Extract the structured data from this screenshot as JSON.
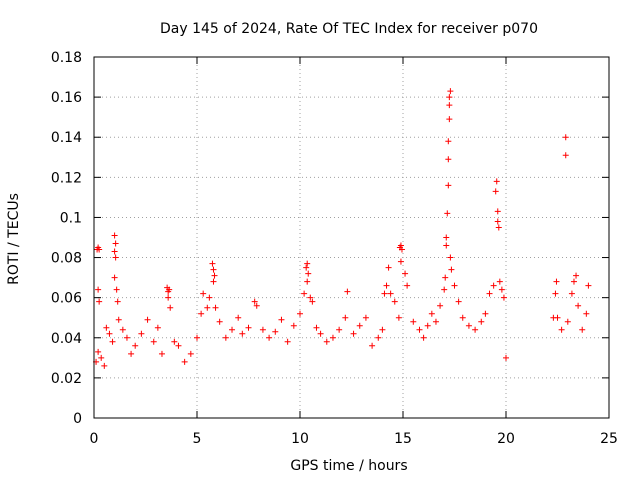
{
  "chart_data": {
    "type": "scatter",
    "title": "Day 145 of 2024, Rate Of TEC Index for receiver p070",
    "xlabel": "GPS time / hours",
    "ylabel": "ROTI / TECUs",
    "xlim": [
      0,
      25
    ],
    "ylim": [
      0,
      0.18
    ],
    "xticks": [
      0,
      5,
      10,
      15,
      20,
      25
    ],
    "xtick_labels": [
      "0",
      "5",
      "10",
      "15",
      "20",
      "25"
    ],
    "yticks": [
      0,
      0.02,
      0.04,
      0.06,
      0.08,
      0.1,
      0.12,
      0.14,
      0.16,
      0.18
    ],
    "ytick_labels": [
      "0",
      "0.02",
      "0.04",
      "0.06",
      "0.08",
      "0.1",
      "0.12",
      "0.14",
      "0.16",
      "0.18"
    ],
    "grid": true,
    "marker": "+",
    "color": "#ff0000",
    "series": [
      {
        "name": "p070",
        "points": [
          [
            0.15,
            0.084
          ],
          [
            0.2,
            0.085
          ],
          [
            0.25,
            0.084
          ],
          [
            0.2,
            0.064
          ],
          [
            0.25,
            0.058
          ],
          [
            0.1,
            0.028
          ],
          [
            0.2,
            0.033
          ],
          [
            0.35,
            0.03
          ],
          [
            0.5,
            0.026
          ],
          [
            0.6,
            0.045
          ],
          [
            0.75,
            0.042
          ],
          [
            0.9,
            0.038
          ],
          [
            1.0,
            0.091
          ],
          [
            1.05,
            0.087
          ],
          [
            1.0,
            0.083
          ],
          [
            1.05,
            0.08
          ],
          [
            1.0,
            0.07
          ],
          [
            1.1,
            0.064
          ],
          [
            1.15,
            0.058
          ],
          [
            1.2,
            0.049
          ],
          [
            1.4,
            0.044
          ],
          [
            1.6,
            0.04
          ],
          [
            1.8,
            0.032
          ],
          [
            2.0,
            0.036
          ],
          [
            2.3,
            0.042
          ],
          [
            2.6,
            0.049
          ],
          [
            2.9,
            0.038
          ],
          [
            3.1,
            0.045
          ],
          [
            3.3,
            0.032
          ],
          [
            3.55,
            0.065
          ],
          [
            3.6,
            0.063
          ],
          [
            3.65,
            0.064
          ],
          [
            3.6,
            0.06
          ],
          [
            3.7,
            0.055
          ],
          [
            3.9,
            0.038
          ],
          [
            4.1,
            0.036
          ],
          [
            4.4,
            0.028
          ],
          [
            4.7,
            0.032
          ],
          [
            5.0,
            0.04
          ],
          [
            5.2,
            0.052
          ],
          [
            5.3,
            0.062
          ],
          [
            5.5,
            0.055
          ],
          [
            5.6,
            0.06
          ],
          [
            5.75,
            0.077
          ],
          [
            5.8,
            0.074
          ],
          [
            5.85,
            0.071
          ],
          [
            5.8,
            0.068
          ],
          [
            5.9,
            0.055
          ],
          [
            6.1,
            0.048
          ],
          [
            6.4,
            0.04
          ],
          [
            6.7,
            0.044
          ],
          [
            7.0,
            0.05
          ],
          [
            7.2,
            0.042
          ],
          [
            7.5,
            0.045
          ],
          [
            7.8,
            0.058
          ],
          [
            7.9,
            0.056
          ],
          [
            8.2,
            0.044
          ],
          [
            8.5,
            0.04
          ],
          [
            8.8,
            0.043
          ],
          [
            9.1,
            0.049
          ],
          [
            9.4,
            0.038
          ],
          [
            9.7,
            0.046
          ],
          [
            10.0,
            0.052
          ],
          [
            10.2,
            0.062
          ],
          [
            10.3,
            0.075
          ],
          [
            10.35,
            0.077
          ],
          [
            10.4,
            0.072
          ],
          [
            10.35,
            0.068
          ],
          [
            10.5,
            0.06
          ],
          [
            10.6,
            0.058
          ],
          [
            10.8,
            0.045
          ],
          [
            11.0,
            0.042
          ],
          [
            11.3,
            0.038
          ],
          [
            11.6,
            0.04
          ],
          [
            11.9,
            0.044
          ],
          [
            12.2,
            0.05
          ],
          [
            12.3,
            0.063
          ],
          [
            12.6,
            0.042
          ],
          [
            12.9,
            0.046
          ],
          [
            13.2,
            0.05
          ],
          [
            13.5,
            0.036
          ],
          [
            13.8,
            0.04
          ],
          [
            14.0,
            0.044
          ],
          [
            14.1,
            0.062
          ],
          [
            14.2,
            0.066
          ],
          [
            14.3,
            0.075
          ],
          [
            14.4,
            0.062
          ],
          [
            14.6,
            0.058
          ],
          [
            14.8,
            0.05
          ],
          [
            14.85,
            0.085
          ],
          [
            14.9,
            0.086
          ],
          [
            14.95,
            0.084
          ],
          [
            14.9,
            0.078
          ],
          [
            15.1,
            0.072
          ],
          [
            15.2,
            0.066
          ],
          [
            15.5,
            0.048
          ],
          [
            15.8,
            0.044
          ],
          [
            16.0,
            0.04
          ],
          [
            16.2,
            0.046
          ],
          [
            16.4,
            0.052
          ],
          [
            16.6,
            0.048
          ],
          [
            16.8,
            0.056
          ],
          [
            17.0,
            0.064
          ],
          [
            17.05,
            0.07
          ],
          [
            17.1,
            0.086
          ],
          [
            17.1,
            0.09
          ],
          [
            17.15,
            0.102
          ],
          [
            17.2,
            0.116
          ],
          [
            17.2,
            0.129
          ],
          [
            17.2,
            0.138
          ],
          [
            17.25,
            0.149
          ],
          [
            17.25,
            0.156
          ],
          [
            17.25,
            0.16
          ],
          [
            17.3,
            0.163
          ],
          [
            17.3,
            0.08
          ],
          [
            17.35,
            0.074
          ],
          [
            17.5,
            0.066
          ],
          [
            17.7,
            0.058
          ],
          [
            17.9,
            0.05
          ],
          [
            18.2,
            0.046
          ],
          [
            18.5,
            0.044
          ],
          [
            18.8,
            0.048
          ],
          [
            19.0,
            0.052
          ],
          [
            19.2,
            0.062
          ],
          [
            19.4,
            0.066
          ],
          [
            19.5,
            0.113
          ],
          [
            19.55,
            0.118
          ],
          [
            19.6,
            0.103
          ],
          [
            19.6,
            0.098
          ],
          [
            19.65,
            0.095
          ],
          [
            19.7,
            0.068
          ],
          [
            19.8,
            0.064
          ],
          [
            19.9,
            0.06
          ],
          [
            20.0,
            0.03
          ],
          [
            22.3,
            0.05
          ],
          [
            22.4,
            0.062
          ],
          [
            22.45,
            0.068
          ],
          [
            22.5,
            0.05
          ],
          [
            22.7,
            0.044
          ],
          [
            22.9,
            0.14
          ],
          [
            22.9,
            0.131
          ],
          [
            23.0,
            0.048
          ],
          [
            23.2,
            0.062
          ],
          [
            23.3,
            0.068
          ],
          [
            23.4,
            0.071
          ],
          [
            23.5,
            0.056
          ],
          [
            23.7,
            0.044
          ],
          [
            23.9,
            0.052
          ],
          [
            24.0,
            0.066
          ]
        ]
      }
    ]
  }
}
